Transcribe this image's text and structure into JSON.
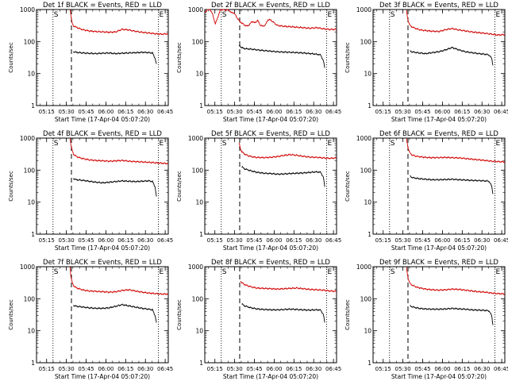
{
  "page": {
    "background": "#ffffff",
    "event_color": "#000000",
    "lld_color": "#d00000"
  },
  "shared": {
    "ylabel": "Counts/sec",
    "xlabel": "Start Time (17-Apr-04 05:07:20)",
    "x_ticks": [
      "05:15",
      "05:30",
      "05:45",
      "06:00",
      "06:15",
      "06:30",
      "06:45"
    ],
    "y_ticks": [
      "1",
      "10",
      "100",
      "1000"
    ],
    "marker_s": "S",
    "marker_e": "E"
  },
  "chart_data": [
    {
      "type": "line",
      "title": "Det 1f BLACK = Events, RED = LLD",
      "xlim_min": [
        0,
        100
      ],
      "ylim": [
        1,
        1000
      ],
      "yscale": "log",
      "vlines_min": {
        "dotted": [
          12.5,
          92.5
        ],
        "dashed": [
          26.5
        ]
      },
      "series": [
        {
          "color": "#d00000",
          "x": [
            25.5,
            26,
            26.5,
            27,
            28,
            30,
            33,
            36,
            40,
            45,
            50,
            55,
            60,
            65,
            70,
            75,
            80,
            85,
            90,
            95,
            100
          ],
          "y": [
            1000,
            700,
            520,
            380,
            310,
            280,
            250,
            230,
            215,
            205,
            200,
            195,
            200,
            240,
            230,
            210,
            195,
            185,
            175,
            170,
            175
          ]
        },
        {
          "color": "#000000",
          "x": [
            28,
            30,
            35,
            40,
            45,
            50,
            55,
            60,
            65,
            70,
            75,
            80,
            85,
            88,
            90,
            91
          ],
          "y": [
            48,
            46,
            44,
            43,
            42,
            43,
            44,
            42,
            43,
            44,
            45,
            46,
            45,
            44,
            30,
            20
          ]
        }
      ]
    },
    {
      "type": "line",
      "title": "Det 2f BLACK = Events, RED = LLD",
      "xlim_min": [
        0,
        100
      ],
      "ylim": [
        1,
        1000
      ],
      "yscale": "log",
      "vlines_min": {
        "dotted": [
          12.5,
          92.5
        ],
        "dashed": [
          26.5
        ]
      },
      "series": [
        {
          "color": "#d00000",
          "x": [
            0,
            2,
            4,
            6,
            8,
            10,
            12,
            14,
            16,
            18,
            20,
            22,
            24,
            26,
            28,
            30,
            32,
            34,
            36,
            38,
            40,
            42,
            44,
            46,
            48,
            50,
            55,
            60,
            65,
            70,
            75,
            80,
            85,
            90,
            95,
            100
          ],
          "y": [
            800,
            1000,
            1000,
            700,
            350,
            600,
            1000,
            1000,
            950,
            1000,
            800,
            800,
            600,
            450,
            380,
            330,
            300,
            340,
            430,
            380,
            460,
            330,
            300,
            330,
            480,
            470,
            320,
            300,
            290,
            280,
            270,
            260,
            270,
            250,
            240,
            240
          ]
        },
        {
          "color": "#000000",
          "x": [
            26,
            28,
            30,
            35,
            40,
            45,
            50,
            55,
            60,
            65,
            70,
            75,
            80,
            85,
            88,
            90,
            91
          ],
          "y": [
            75,
            65,
            60,
            58,
            55,
            52,
            50,
            48,
            47,
            46,
            45,
            44,
            42,
            40,
            38,
            25,
            15
          ]
        }
      ]
    },
    {
      "type": "line",
      "title": "Det 3f BLACK = Events, RED = LLD",
      "xlim_min": [
        0,
        100
      ],
      "ylim": [
        1,
        1000
      ],
      "yscale": "log",
      "vlines_min": {
        "dotted": [
          12.5,
          92.5
        ],
        "dashed": [
          26.5
        ]
      },
      "series": [
        {
          "color": "#d00000",
          "x": [
            25.5,
            26,
            27,
            28,
            30,
            33,
            36,
            40,
            45,
            50,
            55,
            60,
            65,
            70,
            75,
            80,
            85,
            90,
            95,
            100
          ],
          "y": [
            1000,
            600,
            400,
            320,
            280,
            250,
            230,
            220,
            210,
            205,
            235,
            255,
            230,
            215,
            200,
            190,
            180,
            170,
            160,
            165
          ]
        },
        {
          "color": "#000000",
          "x": [
            28,
            30,
            35,
            40,
            45,
            50,
            55,
            60,
            65,
            70,
            75,
            80,
            85,
            88,
            90,
            91
          ],
          "y": [
            50,
            47,
            44,
            42,
            45,
            48,
            55,
            65,
            55,
            48,
            45,
            42,
            40,
            38,
            30,
            18
          ]
        }
      ]
    },
    {
      "type": "line",
      "title": "Det 4f BLACK = Events, RED = LLD",
      "xlim_min": [
        0,
        100
      ],
      "ylim": [
        1,
        1000
      ],
      "yscale": "log",
      "vlines_min": {
        "dotted": [
          12.5,
          92.5
        ],
        "dashed": [
          26.5
        ]
      },
      "series": [
        {
          "color": "#d00000",
          "x": [
            25.5,
            26,
            27,
            28,
            30,
            33,
            36,
            40,
            45,
            50,
            55,
            60,
            65,
            70,
            75,
            80,
            85,
            90,
            95,
            100
          ],
          "y": [
            1000,
            650,
            420,
            320,
            270,
            240,
            225,
            210,
            200,
            195,
            190,
            195,
            200,
            190,
            185,
            180,
            175,
            170,
            165,
            160
          ]
        },
        {
          "color": "#000000",
          "x": [
            28,
            30,
            35,
            40,
            45,
            50,
            55,
            60,
            65,
            70,
            75,
            80,
            85,
            88,
            90,
            91
          ],
          "y": [
            55,
            50,
            48,
            45,
            42,
            40,
            42,
            44,
            46,
            45,
            44,
            45,
            46,
            44,
            30,
            15
          ]
        }
      ]
    },
    {
      "type": "line",
      "title": "Det 5f BLACK = Events, RED = LLD",
      "xlim_min": [
        0,
        100
      ],
      "ylim": [
        1,
        1000
      ],
      "yscale": "log",
      "vlines_min": {
        "dotted": [
          12.5,
          92.5
        ],
        "dashed": [
          26.5
        ]
      },
      "series": [
        {
          "color": "#d00000",
          "x": [
            26,
            27,
            28,
            30,
            33,
            36,
            40,
            45,
            50,
            55,
            60,
            65,
            70,
            75,
            80,
            85,
            90,
            95,
            100
          ],
          "y": [
            700,
            480,
            380,
            320,
            280,
            260,
            250,
            245,
            250,
            265,
            290,
            305,
            290,
            270,
            255,
            250,
            240,
            235,
            240
          ]
        },
        {
          "color": "#000000",
          "x": [
            28,
            30,
            35,
            40,
            45,
            50,
            55,
            60,
            65,
            70,
            75,
            80,
            85,
            88,
            90,
            91
          ],
          "y": [
            130,
            110,
            95,
            85,
            80,
            78,
            75,
            76,
            78,
            80,
            82,
            85,
            88,
            85,
            60,
            30
          ]
        }
      ]
    },
    {
      "type": "line",
      "title": "Det 6f BLACK = Events, RED = LLD",
      "xlim_min": [
        0,
        100
      ],
      "ylim": [
        1,
        1000
      ],
      "yscale": "log",
      "vlines_min": {
        "dotted": [
          12.5,
          92.5
        ],
        "dashed": [
          26.5
        ]
      },
      "series": [
        {
          "color": "#d00000",
          "x": [
            25.5,
            26,
            27,
            28,
            30,
            33,
            36,
            40,
            45,
            50,
            55,
            60,
            65,
            70,
            75,
            80,
            85,
            90,
            95,
            100
          ],
          "y": [
            1000,
            650,
            430,
            340,
            290,
            270,
            260,
            250,
            245,
            245,
            250,
            245,
            240,
            230,
            220,
            210,
            200,
            190,
            185,
            180
          ]
        },
        {
          "color": "#000000",
          "x": [
            28,
            30,
            35,
            40,
            45,
            50,
            55,
            60,
            65,
            70,
            75,
            80,
            85,
            88,
            90,
            91
          ],
          "y": [
            65,
            58,
            54,
            52,
            50,
            50,
            51,
            52,
            50,
            49,
            48,
            47,
            46,
            45,
            32,
            18
          ]
        }
      ]
    },
    {
      "type": "line",
      "title": "Det 7f BLACK = Events, RED = LLD",
      "xlim_min": [
        0,
        100
      ],
      "ylim": [
        1,
        1000
      ],
      "yscale": "log",
      "vlines_min": {
        "dotted": [
          12.5,
          92.5
        ],
        "dashed": [
          26.5
        ]
      },
      "series": [
        {
          "color": "#d00000",
          "x": [
            25.5,
            26,
            27,
            28,
            30,
            33,
            36,
            40,
            45,
            50,
            55,
            60,
            65,
            70,
            75,
            80,
            85,
            90,
            95,
            100
          ],
          "y": [
            1000,
            520,
            330,
            260,
            220,
            200,
            185,
            175,
            170,
            165,
            160,
            165,
            180,
            190,
            175,
            160,
            150,
            145,
            140,
            140
          ]
        },
        {
          "color": "#000000",
          "x": [
            28,
            30,
            35,
            40,
            45,
            50,
            55,
            60,
            65,
            70,
            75,
            80,
            85,
            88,
            90,
            91
          ],
          "y": [
            62,
            58,
            55,
            52,
            50,
            50,
            52,
            58,
            65,
            60,
            55,
            50,
            47,
            45,
            30,
            18
          ]
        }
      ]
    },
    {
      "type": "line",
      "title": "Det 8f BLACK = Events, RED = LLD",
      "xlim_min": [
        0,
        100
      ],
      "ylim": [
        1,
        1000
      ],
      "yscale": "log",
      "vlines_min": {
        "dotted": [
          12.5,
          92.5
        ],
        "dashed": [
          26.5
        ]
      },
      "series": [
        {
          "color": "#d00000",
          "x": [
            27,
            28,
            30,
            33,
            36,
            40,
            45,
            50,
            55,
            60,
            65,
            70,
            75,
            80,
            85,
            90,
            95,
            100
          ],
          "y": [
            360,
            320,
            280,
            250,
            230,
            215,
            210,
            205,
            200,
            205,
            210,
            215,
            205,
            195,
            190,
            185,
            175,
            170
          ]
        },
        {
          "color": "#000000",
          "x": [
            28,
            30,
            35,
            40,
            45,
            50,
            55,
            60,
            65,
            70,
            75,
            80,
            85,
            88,
            90,
            91
          ],
          "y": [
            70,
            60,
            52,
            48,
            46,
            45,
            45,
            46,
            47,
            46,
            45,
            44,
            45,
            44,
            32,
            18
          ]
        }
      ]
    },
    {
      "type": "line",
      "title": "Det 9f BLACK = Events, RED = LLD",
      "xlim_min": [
        0,
        100
      ],
      "ylim": [
        1,
        1000
      ],
      "yscale": "log",
      "vlines_min": {
        "dotted": [
          12.5,
          92.5
        ],
        "dashed": [
          26.5
        ]
      },
      "series": [
        {
          "color": "#d00000",
          "x": [
            25.5,
            26,
            27,
            28,
            30,
            33,
            36,
            40,
            45,
            50,
            55,
            60,
            65,
            70,
            75,
            80,
            85,
            90,
            95,
            100
          ],
          "y": [
            1000,
            600,
            380,
            300,
            260,
            230,
            215,
            200,
            190,
            185,
            190,
            200,
            195,
            185,
            175,
            165,
            160,
            150,
            145,
            140
          ]
        },
        {
          "color": "#000000",
          "x": [
            28,
            30,
            35,
            40,
            45,
            50,
            55,
            60,
            65,
            70,
            75,
            80,
            85,
            88,
            90,
            91
          ],
          "y": [
            60,
            55,
            50,
            48,
            47,
            47,
            48,
            50,
            48,
            47,
            45,
            44,
            43,
            42,
            30,
            15
          ]
        }
      ]
    }
  ]
}
